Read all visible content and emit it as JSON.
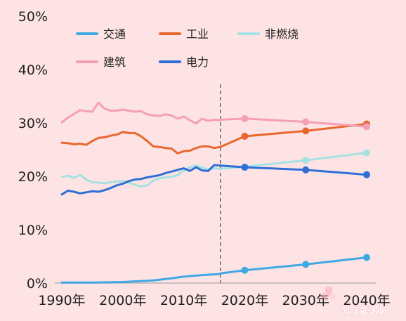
{
  "chart_data": {
    "type": "line",
    "title": "",
    "xlabel": "",
    "ylabel": "",
    "x_ticks": [
      "1990年",
      "2000年",
      "2010年",
      "2020年",
      "2030年",
      "2040年"
    ],
    "x_tick_values": [
      1990,
      2000,
      2010,
      2020,
      2030,
      2040
    ],
    "y_ticks": [
      "0%",
      "10%",
      "20%",
      "30%",
      "40%",
      "50%"
    ],
    "y_tick_values": [
      0,
      10,
      20,
      30,
      40,
      50
    ],
    "xlim": [
      1990,
      2041
    ],
    "ylim": [
      0,
      50
    ],
    "grid": false,
    "legend_position": "top",
    "divider_x": 2016,
    "series": [
      {
        "name": "交通",
        "color": "#3fa9e6",
        "history": [
          [
            1990,
            0.1
          ],
          [
            1995,
            0.1
          ],
          [
            2000,
            0.2
          ],
          [
            2005,
            0.5
          ],
          [
            2008,
            0.9
          ],
          [
            2010,
            1.2
          ],
          [
            2013,
            1.5
          ],
          [
            2016,
            1.7
          ]
        ],
        "projection": [
          [
            2016,
            1.8
          ],
          [
            2020,
            2.4
          ],
          [
            2030,
            3.5
          ],
          [
            2040,
            4.8
          ]
        ],
        "markers": [
          [
            2020,
            2.4
          ],
          [
            2030,
            3.5
          ],
          [
            2040,
            4.8
          ]
        ]
      },
      {
        "name": "工业",
        "color": "#e8672f",
        "history": [
          [
            1990,
            26.3
          ],
          [
            1991,
            26.2
          ],
          [
            1992,
            26.0
          ],
          [
            1993,
            26.1
          ],
          [
            1994,
            25.9
          ],
          [
            1995,
            26.6
          ],
          [
            1996,
            27.2
          ],
          [
            1997,
            27.3
          ],
          [
            1998,
            27.6
          ],
          [
            1999,
            27.8
          ],
          [
            2000,
            28.3
          ],
          [
            2001,
            28.1
          ],
          [
            2002,
            28.1
          ],
          [
            2003,
            27.5
          ],
          [
            2004,
            26.6
          ],
          [
            2005,
            25.6
          ],
          [
            2006,
            25.5
          ],
          [
            2007,
            25.3
          ],
          [
            2008,
            25.2
          ],
          [
            2009,
            24.3
          ],
          [
            2010,
            24.7
          ],
          [
            2011,
            24.8
          ],
          [
            2012,
            25.3
          ],
          [
            2013,
            25.6
          ],
          [
            2014,
            25.6
          ],
          [
            2015,
            25.3
          ],
          [
            2016,
            25.5
          ]
        ],
        "projection": [
          [
            2016,
            25.5
          ],
          [
            2018,
            26.5
          ],
          [
            2020,
            27.5
          ],
          [
            2030,
            28.5
          ],
          [
            2040,
            29.8
          ]
        ],
        "markers": [
          [
            2020,
            27.5
          ],
          [
            2030,
            28.5
          ],
          [
            2040,
            29.8
          ]
        ]
      },
      {
        "name": "非燃烧",
        "color": "#a6e1e3",
        "history": [
          [
            1990,
            19.9
          ],
          [
            1991,
            20.1
          ],
          [
            1992,
            19.7
          ],
          [
            1993,
            20.3
          ],
          [
            1994,
            19.4
          ],
          [
            1995,
            18.9
          ],
          [
            1996,
            18.8
          ],
          [
            1997,
            18.7
          ],
          [
            1998,
            18.9
          ],
          [
            1999,
            19.0
          ],
          [
            2000,
            19.1
          ],
          [
            2001,
            18.8
          ],
          [
            2002,
            18.4
          ],
          [
            2003,
            18.1
          ],
          [
            2004,
            18.3
          ],
          [
            2005,
            19.2
          ],
          [
            2006,
            19.6
          ],
          [
            2007,
            19.8
          ],
          [
            2008,
            19.9
          ],
          [
            2009,
            20.2
          ],
          [
            2010,
            21.1
          ],
          [
            2011,
            21.7
          ],
          [
            2012,
            22.0
          ],
          [
            2013,
            21.6
          ],
          [
            2014,
            21.3
          ],
          [
            2015,
            21.5
          ],
          [
            2016,
            21.4
          ]
        ],
        "projection": [
          [
            2016,
            21.4
          ],
          [
            2020,
            21.8
          ],
          [
            2030,
            23.0
          ],
          [
            2040,
            24.4
          ]
        ],
        "markers": [
          [
            2030,
            23.0
          ],
          [
            2040,
            24.4
          ]
        ]
      },
      {
        "name": "建筑",
        "color": "#f49fb6",
        "history": [
          [
            1990,
            30.1
          ],
          [
            1991,
            31.0
          ],
          [
            1992,
            31.7
          ],
          [
            1993,
            32.4
          ],
          [
            1994,
            32.2
          ],
          [
            1995,
            32.1
          ],
          [
            1996,
            33.8
          ],
          [
            1997,
            32.7
          ],
          [
            1998,
            32.3
          ],
          [
            1999,
            32.3
          ],
          [
            2000,
            32.5
          ],
          [
            2001,
            32.3
          ],
          [
            2002,
            32.1
          ],
          [
            2003,
            32.2
          ],
          [
            2004,
            31.6
          ],
          [
            2005,
            31.4
          ],
          [
            2006,
            31.3
          ],
          [
            2007,
            31.6
          ],
          [
            2008,
            31.4
          ],
          [
            2009,
            30.8
          ],
          [
            2010,
            31.2
          ],
          [
            2011,
            30.5
          ],
          [
            2012,
            29.9
          ],
          [
            2013,
            30.8
          ],
          [
            2014,
            30.4
          ],
          [
            2015,
            30.6
          ],
          [
            2016,
            30.5
          ]
        ],
        "projection": [
          [
            2016,
            30.6
          ],
          [
            2020,
            30.8
          ],
          [
            2030,
            30.2
          ],
          [
            2040,
            29.3
          ]
        ],
        "markers": [
          [
            2020,
            30.8
          ],
          [
            2030,
            30.2
          ],
          [
            2040,
            29.3
          ]
        ]
      },
      {
        "name": "电力",
        "color": "#2f6fd6",
        "history": [
          [
            1990,
            16.6
          ],
          [
            1991,
            17.3
          ],
          [
            1992,
            17.1
          ],
          [
            1993,
            16.8
          ],
          [
            1994,
            17.0
          ],
          [
            1995,
            17.2
          ],
          [
            1996,
            17.1
          ],
          [
            1997,
            17.4
          ],
          [
            1998,
            17.8
          ],
          [
            1999,
            18.3
          ],
          [
            2000,
            18.6
          ],
          [
            2001,
            19.1
          ],
          [
            2002,
            19.4
          ],
          [
            2003,
            19.5
          ],
          [
            2004,
            19.8
          ],
          [
            2005,
            20.0
          ],
          [
            2006,
            20.2
          ],
          [
            2007,
            20.6
          ],
          [
            2008,
            20.9
          ],
          [
            2009,
            21.2
          ],
          [
            2010,
            21.5
          ],
          [
            2011,
            21.0
          ],
          [
            2012,
            21.7
          ],
          [
            2013,
            21.1
          ],
          [
            2014,
            21.0
          ],
          [
            2015,
            22.1
          ],
          [
            2016,
            22.0
          ]
        ],
        "projection": [
          [
            2016,
            22.0
          ],
          [
            2020,
            21.7
          ],
          [
            2030,
            21.2
          ],
          [
            2040,
            20.3
          ]
        ],
        "markers": [
          [
            2020,
            21.7
          ],
          [
            2030,
            21.2
          ],
          [
            2040,
            20.3
          ]
        ]
      }
    ]
  },
  "watermark": {
    "text": "国际能源网"
  }
}
